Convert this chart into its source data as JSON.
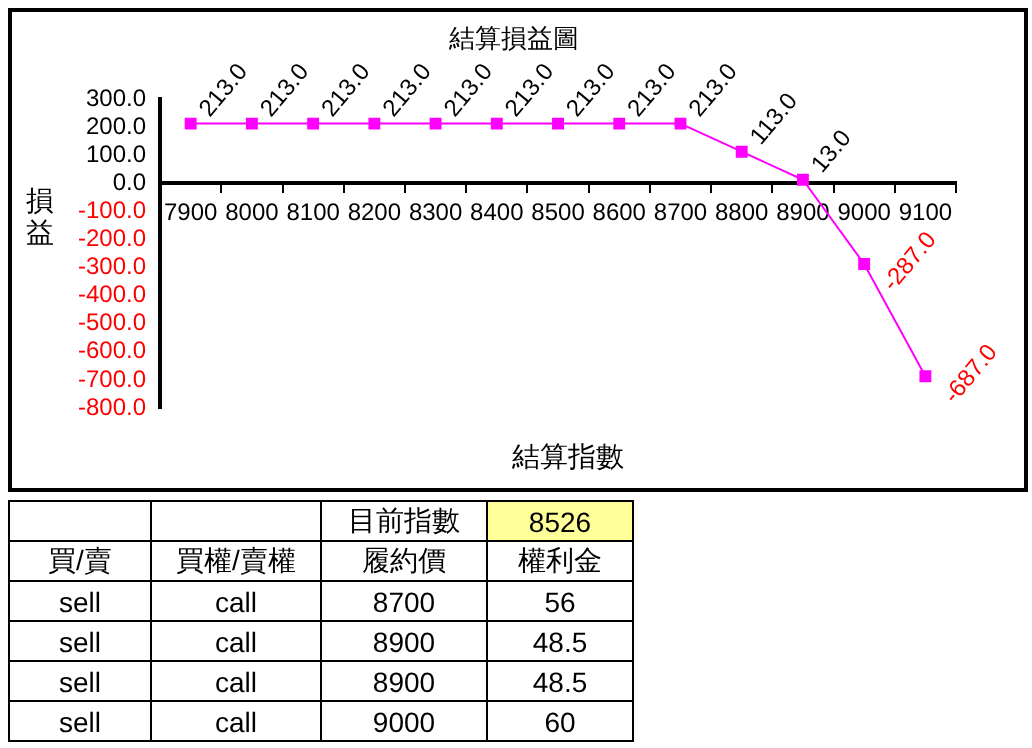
{
  "chart_data": [
    {
      "type": "line",
      "title": "結算損益圖",
      "xlabel": "結算指數",
      "ylabel": "損益",
      "categories": [
        "7900",
        "8000",
        "8100",
        "8200",
        "8300",
        "8400",
        "8500",
        "8600",
        "8700",
        "8800",
        "8900",
        "9000",
        "9100"
      ],
      "series": [
        {
          "color": "#ff00ff",
          "values": [
            213,
            213,
            213,
            213,
            213,
            213,
            213,
            213,
            213,
            113,
            13,
            -287,
            -687
          ]
        }
      ],
      "value_labels": [
        "213.0",
        "213.0",
        "213.0",
        "213.0",
        "213.0",
        "213.0",
        "213.0",
        "213.0",
        "213.0",
        "113.0",
        "13.0",
        "-287.0",
        "-687.0"
      ],
      "ylim": [
        -800,
        300
      ],
      "yticks": [
        {
          "value": 300,
          "label": "300.0"
        },
        {
          "value": 200,
          "label": "200.0"
        },
        {
          "value": 100,
          "label": "100.0"
        },
        {
          "value": 0,
          "label": "0.0"
        },
        {
          "value": -100,
          "label": "-100.0"
        },
        {
          "value": -200,
          "label": "-200.0"
        },
        {
          "value": -300,
          "label": "-300.0"
        },
        {
          "value": -400,
          "label": "-400.0"
        },
        {
          "value": -500,
          "label": "-500.0"
        },
        {
          "value": -600,
          "label": "-600.0"
        },
        {
          "value": -700,
          "label": "-700.0"
        },
        {
          "value": -800,
          "label": "-800.0"
        }
      ],
      "grid": false,
      "legend": false,
      "marker": "square",
      "line_style": "solid"
    },
    {
      "type": "other",
      "annotations": [
        "目前指數",
        "8526"
      ],
      "categories": [
        "買/賣",
        "買權/賣權",
        "履約價",
        "權利金"
      ],
      "cells": [
        [
          "sell",
          "call",
          "8700",
          "56"
        ],
        [
          "sell",
          "call",
          "8900",
          "48.5"
        ],
        [
          "sell",
          "call",
          "8900",
          "48.5"
        ],
        [
          "sell",
          "call",
          "9000",
          "60"
        ]
      ]
    }
  ]
}
